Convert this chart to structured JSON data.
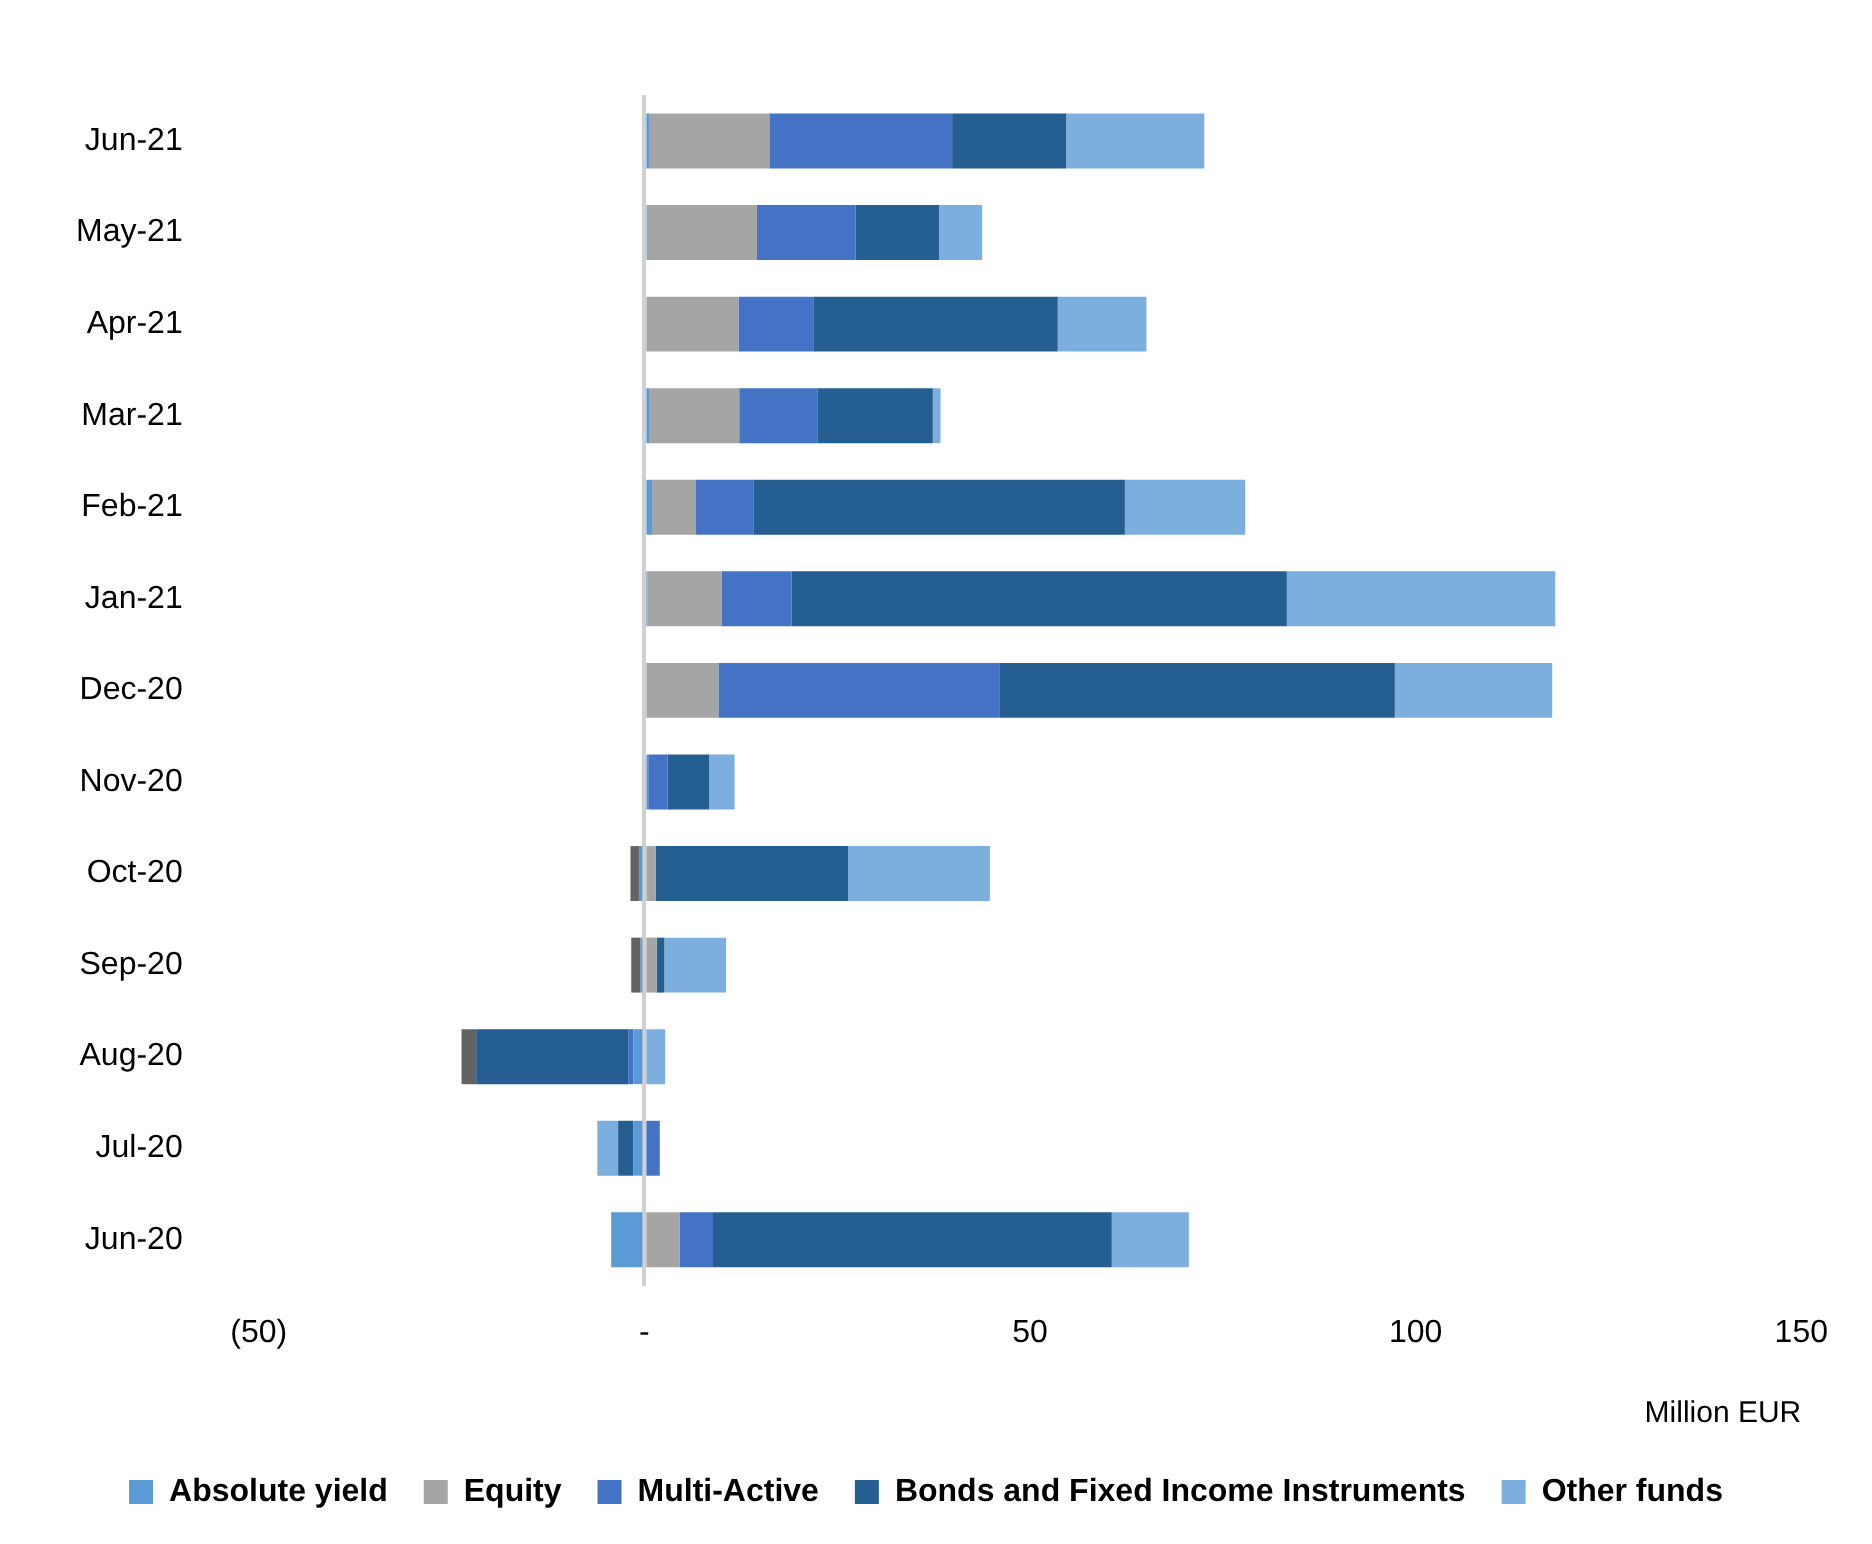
{
  "chart_data": {
    "type": "bar",
    "orientation": "horizontal",
    "stacked": true,
    "xlabel": "Million EUR",
    "categories": [
      "Jun-21",
      "May-21",
      "Apr-21",
      "Mar-21",
      "Feb-21",
      "Jan-21",
      "Dec-20",
      "Nov-20",
      "Oct-20",
      "Sep-20",
      "Aug-20",
      "Jul-20",
      "Jun-20"
    ],
    "series": [
      {
        "name": "Absolute yield",
        "color": "#5b9bd5",
        "values": [
          0.6,
          0.3,
          0,
          0.6,
          1.0,
          0.4,
          0,
          0.5,
          -0.7,
          -0.5,
          -1.4,
          -1.4,
          -4.3
        ]
      },
      {
        "name": "Equity",
        "color": "#a5a5a5",
        "values": [
          15.6,
          14.3,
          12.2,
          11.7,
          5.7,
          9.6,
          9.6,
          null,
          1.5,
          1.6,
          0,
          null,
          4.6
        ]
      },
      {
        "name": "Multi-Active",
        "color": "#4472c4",
        "values": [
          23.7,
          12.8,
          9.7,
          10.2,
          7.5,
          9.1,
          36.5,
          2.5,
          0,
          0,
          -0.7,
          2.0,
          4.3
        ]
      },
      {
        "name": "Bonds and Fixed Income Instruments",
        "color": "#255e91",
        "values": [
          14.8,
          10.8,
          31.7,
          14.9,
          48.1,
          64.2,
          51.2,
          5.4,
          24.9,
          1.0,
          -19.7,
          -2.0,
          51.7
        ]
      },
      {
        "name": "Other funds",
        "color": "#7cafdd",
        "values": [
          17.9,
          5.6,
          11.5,
          1.0,
          15.6,
          34.8,
          20.4,
          3.3,
          18.4,
          8.0,
          2.7,
          -2.7,
          10.0
        ]
      },
      {
        "color": "#636363",
        "values": [
          0,
          0,
          0,
          0,
          0,
          0,
          0,
          0,
          -1.1,
          -1.2,
          -1.9,
          0,
          0
        ]
      }
    ],
    "xlim": [
      -50,
      150
    ],
    "xticks": [
      {
        "value": -50,
        "label": "(50)"
      },
      {
        "value": 0,
        "label": "-"
      },
      50,
      100,
      150
    ],
    "legend": "bottom"
  }
}
